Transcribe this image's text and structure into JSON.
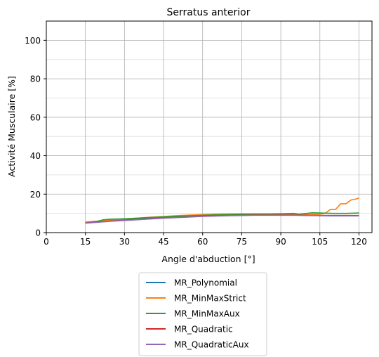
{
  "chart_data": {
    "type": "line",
    "title": "Serratus anterior",
    "xlabel": "Angle d'abduction [°]",
    "ylabel": "Activité Musculaire [%]",
    "xlim": [
      0,
      125
    ],
    "ylim": [
      0,
      110
    ],
    "xticks": [
      0,
      15,
      30,
      45,
      60,
      75,
      90,
      105,
      120
    ],
    "xtick_labels": [
      "0",
      "15",
      "30",
      "45",
      "60",
      "75",
      "90",
      "105",
      "120"
    ],
    "yticks": [
      0,
      20,
      40,
      60,
      80,
      100
    ],
    "ytick_labels": [
      "0",
      "20",
      "40",
      "60",
      "80",
      "100"
    ],
    "y_minor_grid": [
      10,
      30,
      50,
      70,
      90,
      110
    ],
    "grid": true,
    "legend_position": "below",
    "series": [
      {
        "name": "MR_Polynomial",
        "color": "#1f77b4",
        "x": [
          15,
          20,
          25,
          30,
          35,
          40,
          45,
          50,
          55,
          60,
          65,
          70,
          75,
          80,
          85,
          90,
          95,
          100,
          105,
          110,
          115,
          120
        ],
        "y": [
          5.2,
          5.8,
          6.3,
          6.7,
          7.0,
          7.4,
          7.8,
          8.1,
          8.4,
          8.7,
          8.9,
          9.1,
          9.2,
          9.2,
          9.2,
          9.2,
          9.1,
          9.0,
          8.9,
          8.8,
          8.8,
          8.8
        ]
      },
      {
        "name": "MR_MinMaxStrict",
        "color": "#ff7f0e",
        "x": [
          15,
          20,
          25,
          30,
          35,
          40,
          45,
          50,
          55,
          60,
          65,
          70,
          75,
          80,
          85,
          90,
          95,
          100,
          105,
          107,
          109,
          111,
          113,
          115,
          117,
          119,
          120
        ],
        "y": [
          5.5,
          6.0,
          6.6,
          7.1,
          7.5,
          8.0,
          8.4,
          8.8,
          9.1,
          9.4,
          9.6,
          9.7,
          9.7,
          9.6,
          9.5,
          9.5,
          9.4,
          9.4,
          9.6,
          10.0,
          12.0,
          12.0,
          15.0,
          15.0,
          17.0,
          17.5,
          18.0
        ]
      },
      {
        "name": "MR_MinMaxAux",
        "color": "#2ca02c",
        "x": [
          15,
          20,
          22,
          25,
          30,
          35,
          40,
          45,
          50,
          55,
          60,
          65,
          70,
          75,
          80,
          85,
          90,
          95,
          97,
          100,
          102,
          105,
          110,
          115,
          120
        ],
        "y": [
          5.0,
          6.0,
          6.7,
          7.0,
          7.2,
          7.5,
          7.9,
          8.2,
          8.5,
          8.7,
          9.0,
          9.2,
          9.4,
          9.6,
          9.7,
          9.7,
          9.8,
          10.0,
          9.6,
          10.0,
          10.3,
          10.2,
          10.0,
          10.0,
          10.2
        ]
      },
      {
        "name": "MR_Quadratic",
        "color": "#d62728",
        "x": [
          15,
          20,
          25,
          30,
          35,
          40,
          45,
          50,
          55,
          60,
          65,
          70,
          75,
          80,
          85,
          90,
          95,
          100,
          105,
          110,
          115,
          120
        ],
        "y": [
          5.0,
          5.5,
          6.0,
          6.4,
          6.8,
          7.2,
          7.6,
          7.9,
          8.2,
          8.5,
          8.7,
          8.9,
          9.0,
          9.1,
          9.1,
          9.1,
          9.1,
          9.0,
          8.9,
          8.9,
          8.9,
          8.9
        ]
      },
      {
        "name": "MR_QuadraticAux",
        "color": "#9467bd",
        "x": [
          15,
          20,
          25,
          30,
          35,
          40,
          45,
          50,
          55,
          60,
          65,
          70,
          75,
          80,
          85,
          90,
          95,
          100,
          105,
          110,
          115,
          120
        ],
        "y": [
          4.9,
          5.4,
          5.9,
          6.3,
          6.7,
          7.1,
          7.5,
          7.8,
          8.1,
          8.4,
          8.6,
          8.8,
          8.9,
          9.0,
          9.0,
          9.0,
          9.0,
          8.9,
          8.8,
          8.7,
          8.7,
          8.7
        ]
      }
    ]
  }
}
